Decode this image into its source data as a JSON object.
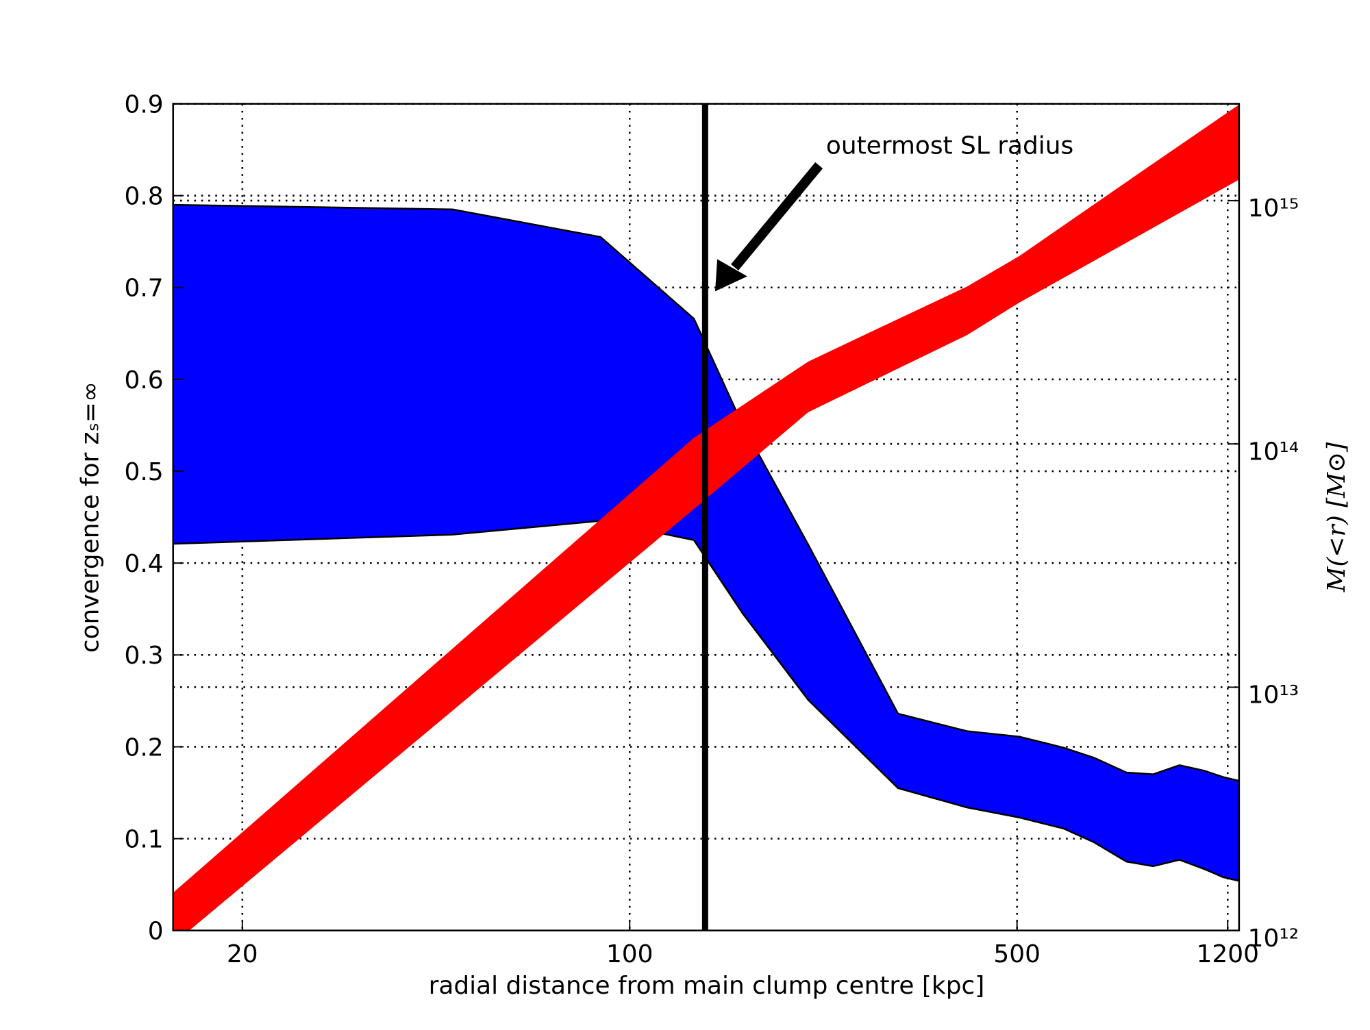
{
  "chart_data": {
    "type": "band",
    "xlabel": "radial distance from main clump centre [kpc]",
    "ylabel": "convergence for zₛ=∞",
    "y2label": "M(<r) [M⊙]",
    "xscale": "log",
    "y2scale": "log",
    "grid": true,
    "xlim": [
      15,
      1258
    ],
    "xticks": [
      20,
      100,
      500,
      1200
    ],
    "ylim": [
      0,
      0.9
    ],
    "yticks": [
      0.0,
      0.1,
      0.2,
      0.3,
      0.4,
      0.5,
      0.6,
      0.7,
      0.8,
      0.9
    ],
    "y2lim": [
      1000000000000.0,
      2500000000000000.0
    ],
    "y2ticks": [
      {
        "value": 1000000000000.0,
        "label": "10¹²"
      },
      {
        "value": 10000000000000.0,
        "label": "10¹³"
      },
      {
        "value": 100000000000000.0,
        "label": "10¹⁴"
      },
      {
        "value": 1000000000000000.0,
        "label": "10¹⁵"
      }
    ],
    "series": [
      {
        "color": "#0000ff",
        "edge": "#000000",
        "x": [
          15,
          47.9,
          88.6,
          130.6,
          160,
          210,
          305,
          406,
          505,
          607,
          689,
          788,
          880,
          982,
          1088,
          1178,
          1258
        ],
        "upper": [
          0.79,
          0.785,
          0.755,
          0.666,
          0.55,
          0.42,
          0.236,
          0.217,
          0.211,
          0.199,
          0.188,
          0.172,
          0.17,
          0.18,
          0.174,
          0.167,
          0.163
        ],
        "lower": [
          0.421,
          0.431,
          0.446,
          0.425,
          0.345,
          0.251,
          0.155,
          0.134,
          0.123,
          0.111,
          0.096,
          0.075,
          0.07,
          0.077,
          0.067,
          0.058,
          0.054
        ]
      },
      {
        "color": "#ff0000",
        "axis": "y2",
        "x": [
          15,
          130.6,
          210,
          305,
          406,
          505,
          880,
          1258
        ],
        "upper": [
          1430000000000.0,
          106000000000000.0,
          218000000000000.0,
          326000000000000.0,
          443000000000000.0,
          592000000000000.0,
          1420000000000000.0,
          2480000000000000.0
        ],
        "lower": [
          880000000000.0,
          54000000000000.0,
          135000000000000.0,
          204000000000000.0,
          280000000000000.0,
          381000000000000.0,
          773000000000000.0,
          1220000000000000.0
        ]
      }
    ],
    "vline": 136.8,
    "annotation": "outermost SL radius"
  }
}
